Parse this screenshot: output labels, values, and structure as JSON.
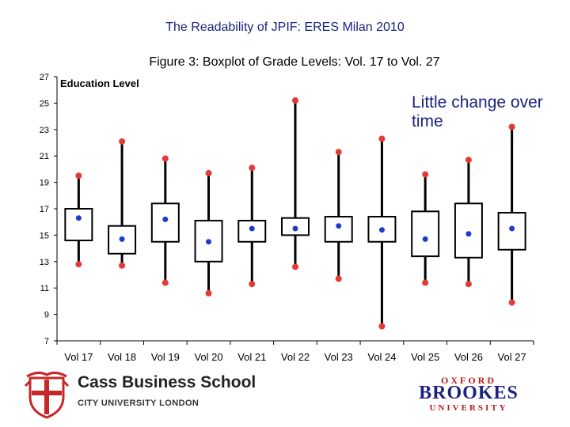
{
  "slide_title": "The Readability of JPIF: ERES Milan 2010",
  "annotation": "Little change over time",
  "colors": {
    "title": "#1a237e",
    "whisker_end": "#e53935",
    "mean": "#1e3cc8",
    "box": "#000000"
  },
  "logos": {
    "cass_name": "Cass Business School",
    "cass_sub": "CITY UNIVERSITY LONDON",
    "brookes_top": "OXFORD",
    "brookes_mid": "BROOKES",
    "brookes_bottom": "UNIVERSITY"
  },
  "chart_data": {
    "type": "boxplot",
    "title": "Figure 3: Boxplot of Grade Levels: Vol. 17 to Vol. 27",
    "ylabel": "Education Level",
    "ylim": [
      7,
      27
    ],
    "yticks": [
      7,
      9,
      11,
      13,
      15,
      17,
      19,
      21,
      23,
      25,
      27
    ],
    "categories": [
      "Vol 17",
      "Vol 18",
      "Vol 19",
      "Vol 20",
      "Vol 21",
      "Vol 22",
      "Vol 23",
      "Vol 24",
      "Vol 25",
      "Vol 26",
      "Vol 27"
    ],
    "boxes": [
      {
        "min": 12.8,
        "q1": 14.6,
        "mean": 16.3,
        "q3": 17.0,
        "max": 19.5
      },
      {
        "min": 12.7,
        "q1": 13.6,
        "mean": 14.7,
        "q3": 15.7,
        "max": 22.1
      },
      {
        "min": 11.4,
        "q1": 14.5,
        "mean": 16.2,
        "q3": 17.4,
        "max": 20.8
      },
      {
        "min": 10.6,
        "q1": 13.0,
        "mean": 14.5,
        "q3": 16.1,
        "max": 19.7
      },
      {
        "min": 11.3,
        "q1": 14.5,
        "mean": 15.5,
        "q3": 16.1,
        "max": 20.1
      },
      {
        "min": 12.6,
        "q1": 15.0,
        "mean": 15.5,
        "q3": 16.3,
        "max": 25.2
      },
      {
        "min": 11.7,
        "q1": 14.5,
        "mean": 15.7,
        "q3": 16.4,
        "max": 21.3
      },
      {
        "min": 8.1,
        "q1": 14.5,
        "mean": 15.4,
        "q3": 16.4,
        "max": 22.3
      },
      {
        "min": 11.4,
        "q1": 13.4,
        "mean": 14.7,
        "q3": 16.8,
        "max": 19.6
      },
      {
        "min": 11.3,
        "q1": 13.3,
        "mean": 15.1,
        "q3": 17.4,
        "max": 20.7
      },
      {
        "min": 9.9,
        "q1": 13.9,
        "mean": 15.5,
        "q3": 16.7,
        "max": 23.2
      }
    ]
  }
}
